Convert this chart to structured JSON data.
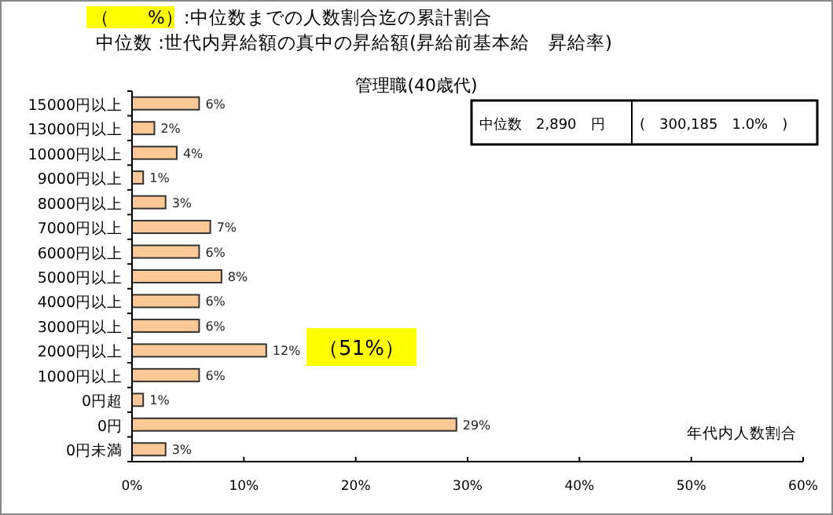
{
  "chart_data": {
    "type": "bar",
    "orientation": "horizontal",
    "title": "管理職(40歳代)",
    "xlabel": "年代内人数割合",
    "categories": [
      "15000円以上",
      "13000円以上",
      "10000円以上",
      "9000円以上",
      "8000円以上",
      "7000円以上",
      "6000円以上",
      "5000円以上",
      "4000円以上",
      "3000円以上",
      "2000円以上",
      "1000円以上",
      "0円超",
      "0円",
      "0円未満"
    ],
    "values": [
      6,
      2,
      4,
      1,
      3,
      7,
      6,
      8,
      6,
      6,
      12,
      6,
      1,
      29,
      3
    ],
    "value_labels": [
      "6%",
      "2%",
      "4%",
      "1%",
      "3%",
      "7%",
      "6%",
      "8%",
      "6%",
      "6%",
      "12%",
      "6%",
      "1%",
      "29%",
      "3%"
    ],
    "color": "#fbc896",
    "xlim": [
      0,
      60
    ],
    "xticks": [
      {
        "value": 0,
        "label": "0%"
      },
      {
        "value": 10,
        "label": "10%"
      },
      {
        "value": 20,
        "label": "20%"
      },
      {
        "value": 30,
        "label": "30%"
      },
      {
        "value": 40,
        "label": "40%"
      },
      {
        "value": 50,
        "label": "50%"
      },
      {
        "value": 60,
        "label": "60%"
      }
    ],
    "grid": false,
    "annotations": [
      "（　　%）:中位数までの人数割合迄の累計割合",
      "中位数 :世代内昇給額の真中の昇給額(昇給前基本給　昇給率)",
      "中位数　2,890　円",
      "(　300,185　1.0%　)",
      "（51%）"
    ]
  }
}
